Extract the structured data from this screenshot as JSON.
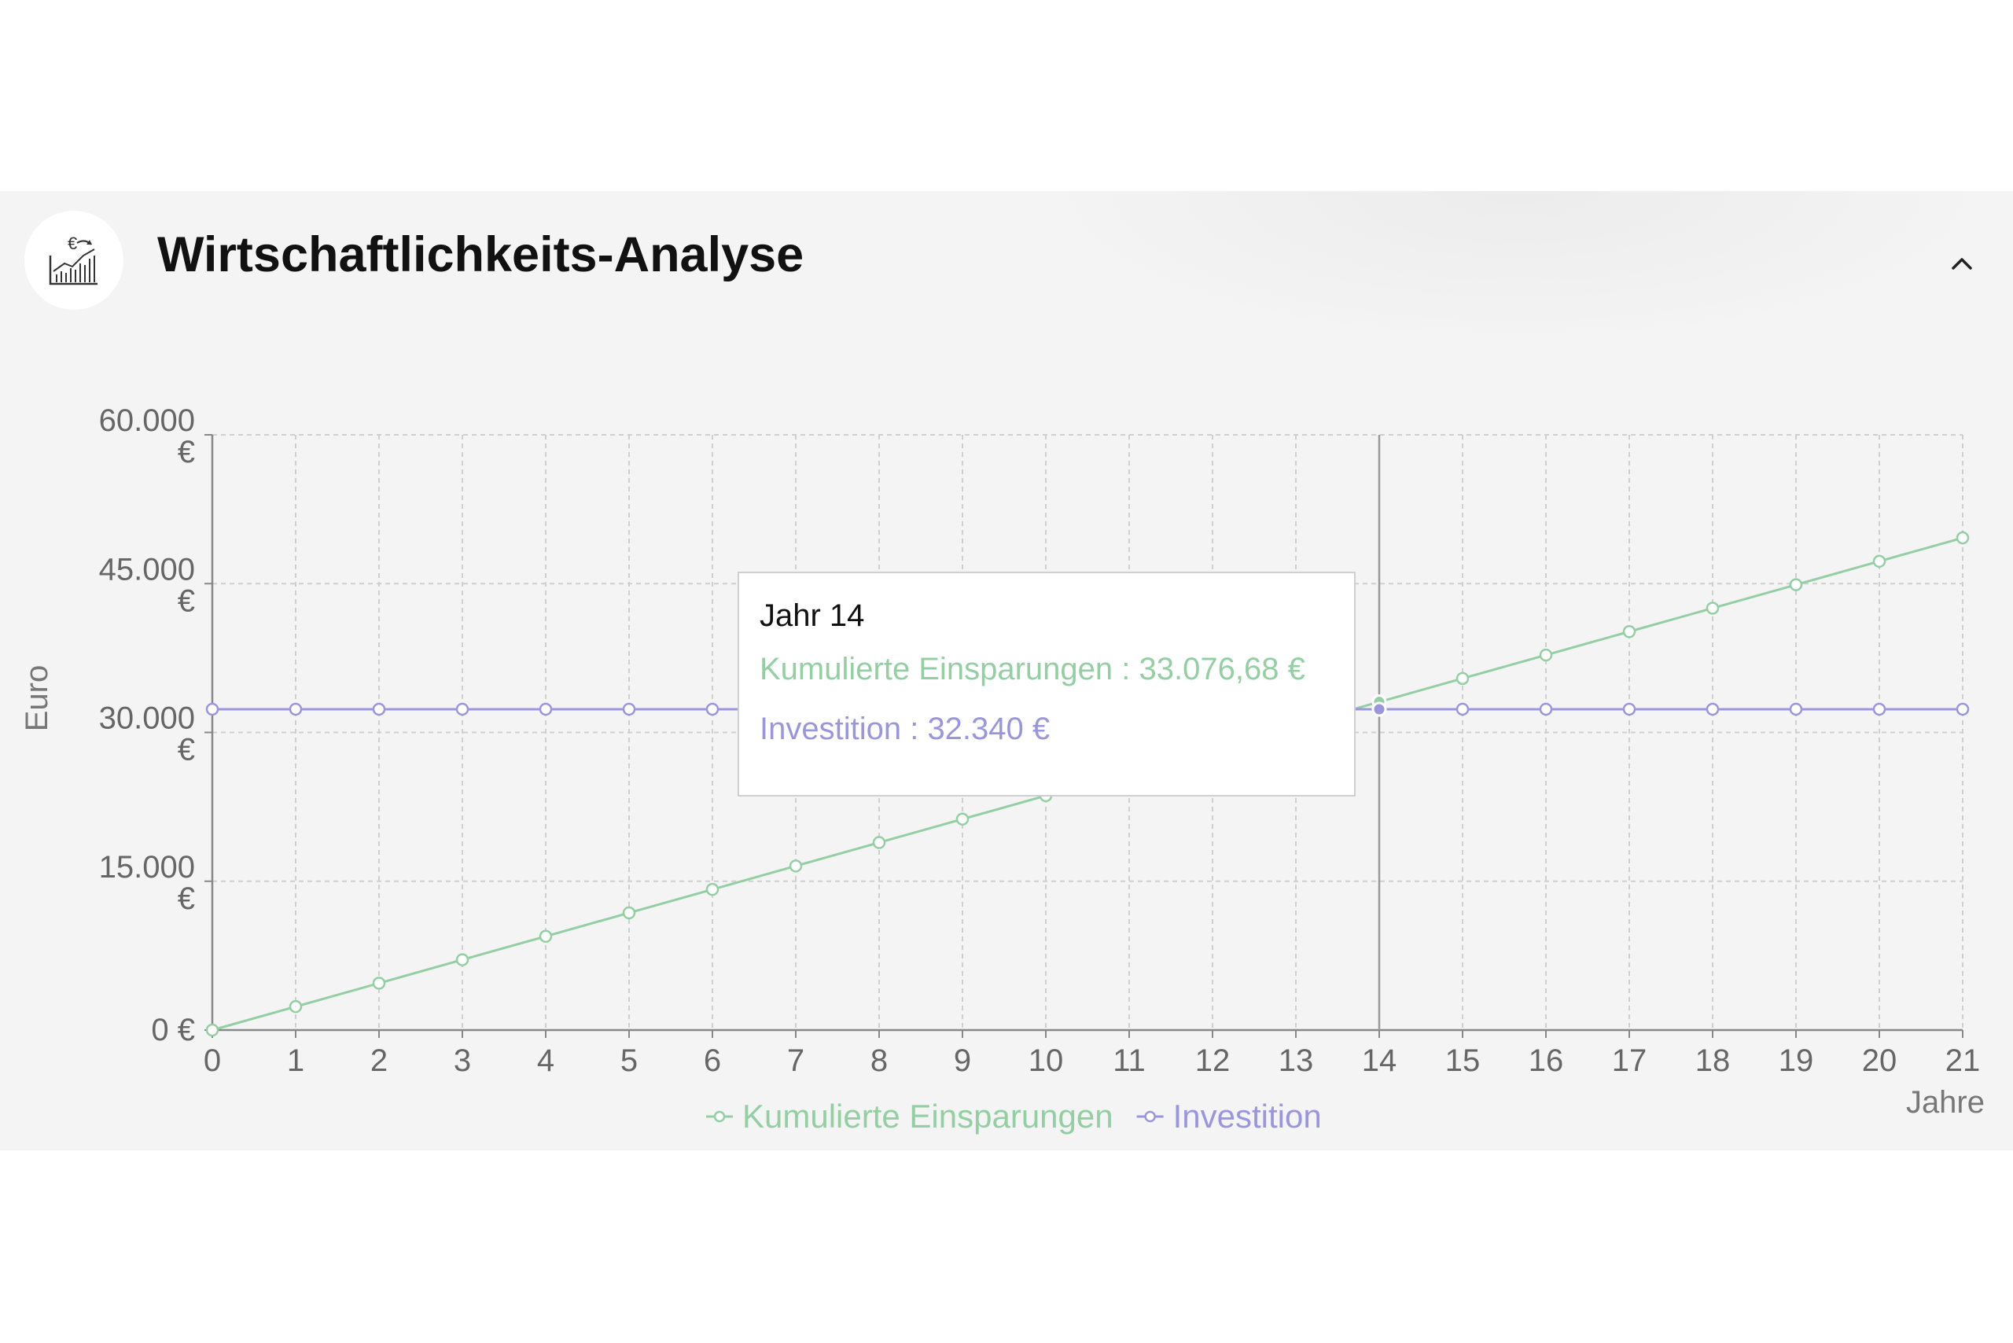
{
  "header": {
    "title": "Wirtschaftlichkeits-Analyse",
    "icon": "chart-euro-icon",
    "collapse_icon": "chevron-up-icon"
  },
  "colors": {
    "savings": "#93cfa3",
    "investment": "#9a96de",
    "panel_bg": "#f4f4f4"
  },
  "chart_data": {
    "type": "line",
    "ylabel": "Euro",
    "xlabel": "Jahre",
    "x": [
      0,
      1,
      2,
      3,
      4,
      5,
      6,
      7,
      8,
      9,
      10,
      11,
      12,
      13,
      14,
      15,
      16,
      17,
      18,
      19,
      20,
      21
    ],
    "ylim": [
      0,
      60000
    ],
    "y_ticks": [
      {
        "value": 0,
        "line1": "0 €",
        "line2": ""
      },
      {
        "value": 15000,
        "line1": "15.000",
        "line2": "€"
      },
      {
        "value": 30000,
        "line1": "30.000",
        "line2": "€"
      },
      {
        "value": 45000,
        "line1": "45.000",
        "line2": "€"
      },
      {
        "value": 60000,
        "line1": "60.000",
        "line2": "€"
      }
    ],
    "grid": true,
    "legend_position": "bottom",
    "series": [
      {
        "name": "Kumulierte Einsparungen",
        "color": "#93cfa3",
        "values": [
          0,
          2363,
          4725,
          7088,
          9451,
          11813,
          14176,
          16539,
          18901,
          21264,
          23626,
          25989,
          28352,
          30714,
          33077,
          35440,
          37802,
          40165,
          42528,
          44890,
          47253,
          49615
        ]
      },
      {
        "name": "Investition",
        "color": "#9a96de",
        "values": [
          32340,
          32340,
          32340,
          32340,
          32340,
          32340,
          32340,
          32340,
          32340,
          32340,
          32340,
          32340,
          32340,
          32340,
          32340,
          32340,
          32340,
          32340,
          32340,
          32340,
          32340,
          32340
        ]
      }
    ],
    "tooltip": {
      "x": 14,
      "title": "Jahr 14",
      "savings_line": "Kumulierte Einsparungen : 33.076,68 €",
      "investment_line": "Investition : 32.340 €"
    }
  }
}
